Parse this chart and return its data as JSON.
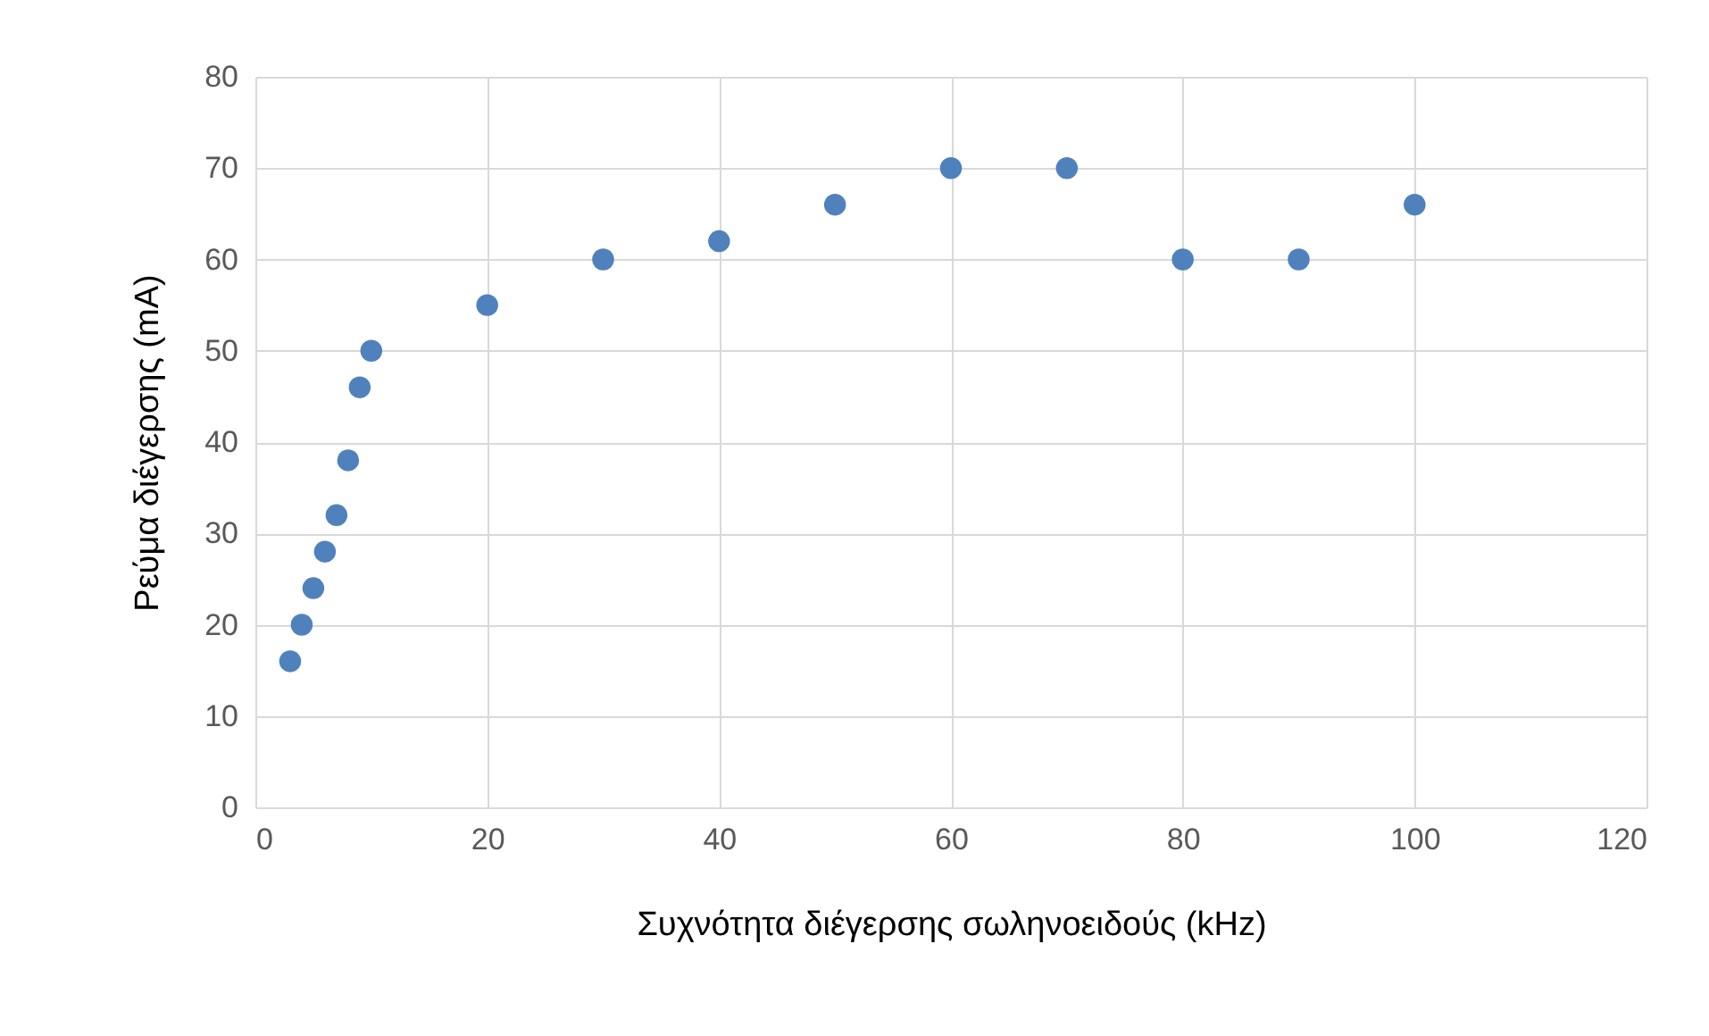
{
  "chart_data": {
    "type": "scatter",
    "xlabel": "Συχνότητα διέγερσης σωληνοειδούς (kHz)",
    "ylabel": "Ρεύμα διέγερσης (mA)",
    "x": [
      3,
      4,
      5,
      6,
      7,
      8,
      9,
      10,
      20,
      30,
      40,
      50,
      60,
      70,
      80,
      90,
      100
    ],
    "series": [
      {
        "color": "#4f81bd",
        "values": [
          16,
          20,
          24,
          28,
          32,
          38,
          46,
          50,
          55,
          60,
          62,
          66,
          70,
          70,
          60,
          60,
          66
        ]
      }
    ],
    "xlim": [
      0,
      120
    ],
    "xticks": [
      0,
      20,
      40,
      60,
      80,
      100,
      120
    ],
    "ylim": [
      0,
      80
    ],
    "yticks": [
      0,
      10,
      20,
      30,
      40,
      50,
      60,
      70,
      80
    ],
    "grid": true,
    "marker": "circle"
  }
}
